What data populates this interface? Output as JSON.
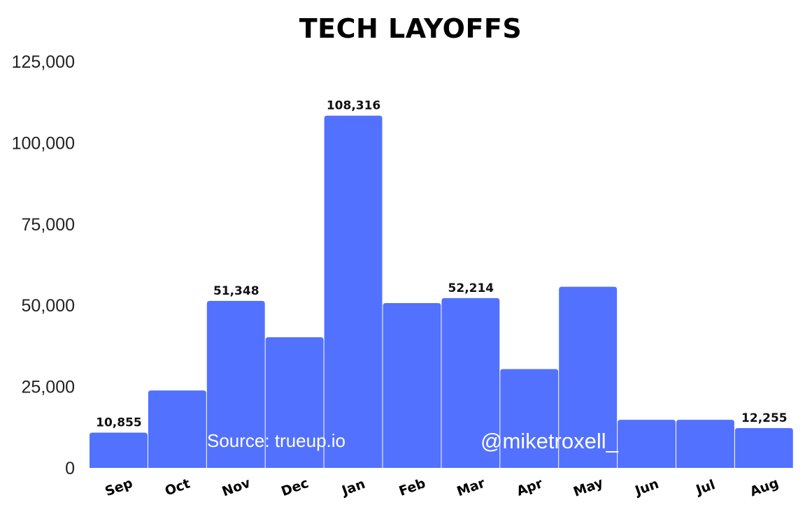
{
  "chart_data": {
    "type": "bar",
    "title": "TECH LAYOFFS",
    "categories": [
      "Sep",
      "Oct",
      "Nov",
      "Dec",
      "Jan",
      "Feb",
      "Mar",
      "Apr",
      "May",
      "Jun",
      "Jul",
      "Aug"
    ],
    "values": [
      10855,
      23800,
      51348,
      40200,
      108316,
      50700,
      52214,
      30400,
      55700,
      14800,
      14800,
      12255
    ],
    "data_labels": [
      "10,855",
      "",
      "51,348",
      "",
      "108,316",
      "",
      "52,214",
      "",
      "",
      "",
      "",
      "12,255"
    ],
    "ylim": [
      0,
      125000
    ],
    "yticks": [
      0,
      25000,
      50000,
      75000,
      100000,
      125000
    ],
    "ytick_labels": [
      "0",
      "25,000",
      "50,000",
      "75,000",
      "100,000",
      "125,000"
    ],
    "xlabel": "",
    "ylabel": "",
    "grid": false,
    "bar_color": "#5271FF",
    "annotations": [
      "Source: trueup.io",
      "@miketroxell_"
    ]
  }
}
